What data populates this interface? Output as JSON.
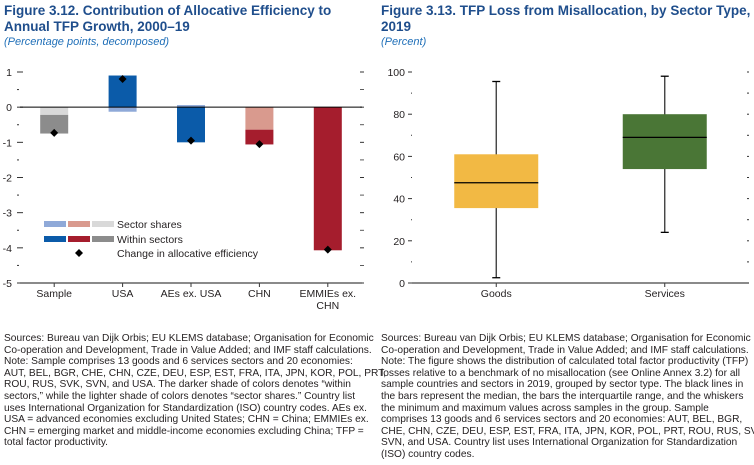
{
  "chart_data": [
    {
      "type": "bar",
      "stacked": true,
      "title": "Figure 3.12.  Contribution of Allocative Efficiency to Annual TFP Growth, 2000–19",
      "subtitle": "(Percentage points, decomposed)",
      "categories": [
        "Sample",
        "USA",
        "AEs ex. USA",
        "CHN",
        "EMMIEs ex. CHN"
      ],
      "series": [
        {
          "name": "Sector shares",
          "values": [
            -0.22,
            -0.13,
            0.06,
            -0.64,
            0
          ]
        },
        {
          "name": "Within sectors",
          "values": [
            -0.53,
            0.9,
            -1.0,
            -0.42,
            -4.07
          ]
        },
        {
          "name": "Change in allocative efficiency",
          "type": "marker",
          "values": [
            -0.73,
            0.8,
            -0.95,
            -1.05,
            -4.05
          ]
        }
      ],
      "group_colors": [
        [
          "#d9d9d9",
          "#8c8c8c"
        ],
        [
          "#8fa9d8",
          "#0b5ba9"
        ],
        [
          "#8fa9d8",
          "#0b5ba9"
        ],
        [
          "#d99a8e",
          "#a51d2d"
        ],
        [
          "#d99a8e",
          "#a51d2d"
        ]
      ],
      "legend_swatches": {
        "Sector shares": [
          "#8fa9d8",
          "#d99a8e",
          "#d9d9d9"
        ],
        "Within sectors": [
          "#0b5ba9",
          "#a51d2d",
          "#8c8c8c"
        ]
      },
      "ylim": [
        -5,
        1
      ],
      "yticks": [
        1,
        0,
        -1,
        -2,
        -3,
        -4,
        -5
      ],
      "legend": "bottom-left",
      "notes": [
        "Sources: Bureau van Dijk Orbis; EU KLEMS database; Organisation for Economic",
        "Co-operation and Development, Trade in Value Added; and IMF staff calculations.",
        "Note: Sample comprises 13 goods and 6 services sectors and 20 economies:",
        "AUT, BEL, BGR, CHE, CHN, CZE, DEU, ESP, EST, FRA, ITA, JPN, KOR, POL, PRT,",
        "ROU, RUS, SVK, SVN, and USA. The darker shade of colors denotes “within",
        "sectors,” while the lighter shade of colors denotes “sector shares.” Country list",
        "uses International Organization for Standardization (ISO) country codes. AEs ex.",
        "USA = advanced economies excluding United States; CHN = China; EMMIEs ex.",
        "CHN = emerging market and middle-income economies excluding China; TFP =",
        "total factor productivity."
      ]
    },
    {
      "type": "box",
      "title": "Figure 3.13.  TFP Loss from Misallocation, by Sector Type, 2019",
      "subtitle": "(Percent)",
      "categories": [
        "Goods",
        "Services"
      ],
      "boxes": [
        {
          "min": 2.5,
          "q1": 35.5,
          "median": 47.5,
          "q3": 61,
          "max": 95.5,
          "color": "#f2b944"
        },
        {
          "min": 24,
          "q1": 54,
          "median": 69,
          "q3": 80,
          "max": 98,
          "color": "#4a7636"
        }
      ],
      "ylim": [
        0,
        100
      ],
      "yticks": [
        100,
        80,
        60,
        40,
        20,
        0
      ],
      "notes": [
        "Sources: Bureau van Dijk Orbis; EU KLEMS database; Organisation for Economic",
        "Co-operation and Development, Trade in Value Added; and IMF staff calculations.",
        "Note: The figure shows the distribution of calculated total factor productivity (TFP)",
        "losses relative to a benchmark of no misallocation (see Online Annex 3.2) for all",
        "sample countries and sectors in 2019, grouped by sector type. The black lines in",
        "the bars represent the median, the bars the interquartile range, and the whiskers",
        "the minimum and maximum values across samples in the group. Sample",
        "comprises 13 goods and 6 services sectors and 20 economies: AUT, BEL, BGR,",
        "CHE, CHN, CZE, DEU, ESP, EST, FRA, ITA, JPN, KOR, POL, PRT, ROU, RUS, SVK,",
        "SVN, and USA. Country list uses International Organization for Standardization",
        "(ISO) country codes."
      ]
    }
  ]
}
